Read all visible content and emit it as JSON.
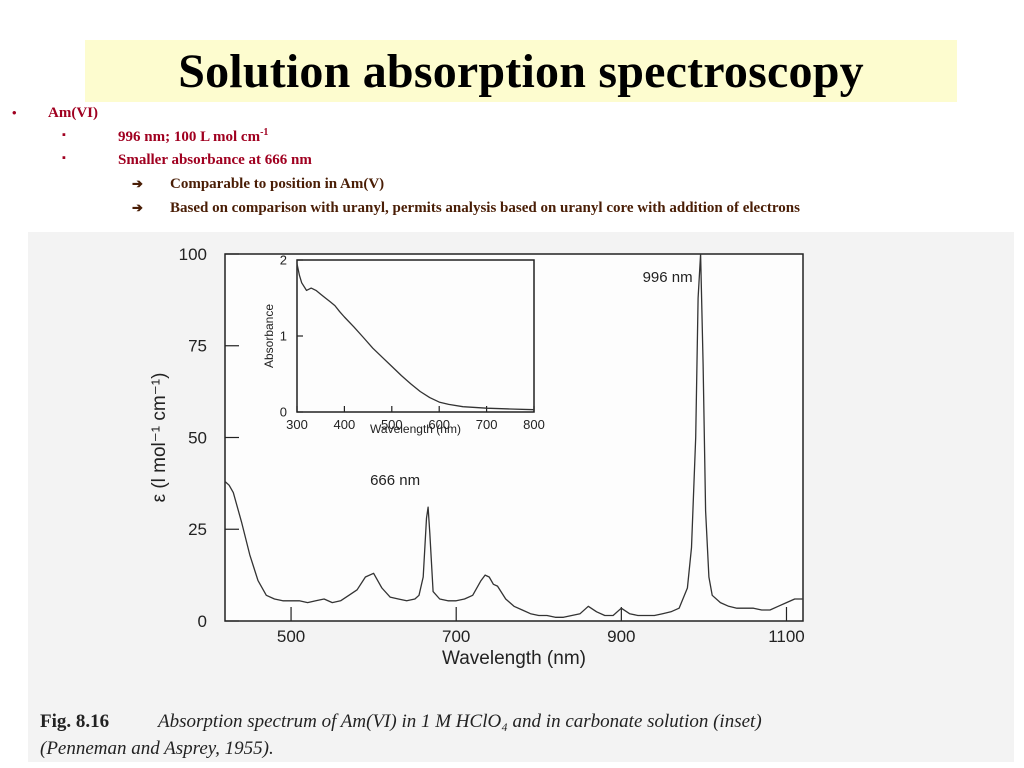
{
  "slide": {
    "title": "Solution absorption spectroscopy",
    "bullets": {
      "level1": {
        "marker": "•",
        "text": "Am(VI)"
      },
      "level2": [
        {
          "marker": "▪",
          "text": "996 nm; 100 L mol cm",
          "sup": "-1"
        },
        {
          "marker": "▪",
          "text": "Smaller absorbance at 666 nm",
          "sup": ""
        }
      ],
      "level3": [
        {
          "marker": "➔",
          "text": "Comparable to position in Am(V)"
        },
        {
          "marker": "➔",
          "text": "Based on comparison with uranyl, permits analysis based on uranyl core with addition of electrons"
        }
      ]
    },
    "colors": {
      "title_bg": "#fdfccf",
      "level1": "#a00020",
      "level2": "#a00020",
      "level3": "#4a1e06"
    }
  },
  "figure": {
    "caption_label": "Fig. 8.16",
    "caption_text_1": "Absorption spectrum of Am(VI) in 1 M HClO₄ and in carbonate solution (inset)",
    "caption_text_2": "(Penneman and Asprey, 1955)."
  },
  "chart_data": [
    {
      "type": "line",
      "title": "",
      "xlabel": "Wavelength (nm)",
      "ylabel": "ε (l mol⁻¹ cm⁻¹)",
      "xlim": [
        420,
        1120
      ],
      "ylim": [
        0,
        100
      ],
      "xticks": [
        500,
        700,
        900,
        1100
      ],
      "xtick_labels": [
        "500",
        "700",
        "900",
        "1100"
      ],
      "yticks": [
        0,
        25,
        50,
        75,
        100
      ],
      "ytick_labels": [
        "0",
        "25",
        "50",
        "75",
        "100"
      ],
      "annotations": [
        {
          "text": "996 nm",
          "x": 996,
          "y": 100
        },
        {
          "text": "666 nm",
          "x": 666,
          "y": 31
        }
      ],
      "series": [
        {
          "x": [
            420,
            425,
            430,
            440,
            450,
            460,
            470,
            480,
            490,
            500,
            510,
            520,
            530,
            540,
            550,
            560,
            570,
            580,
            590,
            600,
            610,
            620,
            630,
            640,
            650,
            655,
            660,
            664,
            666,
            668,
            672,
            680,
            690,
            700,
            710,
            720,
            730,
            735,
            740,
            745,
            750,
            760,
            770,
            780,
            790,
            800,
            810,
            820,
            830,
            840,
            850,
            860,
            870,
            880,
            890,
            900,
            910,
            920,
            930,
            940,
            950,
            960,
            970,
            980,
            985,
            990,
            993,
            996,
            999,
            1002,
            1006,
            1010,
            1020,
            1030,
            1040,
            1050,
            1060,
            1070,
            1080,
            1090,
            1100,
            1110,
            1120
          ],
          "y": [
            38,
            37,
            35,
            27,
            18,
            11,
            7,
            6,
            5.5,
            5.5,
            5.5,
            5,
            5.5,
            6,
            5,
            5.5,
            7,
            8.5,
            12,
            13,
            9,
            6.5,
            6,
            5.5,
            6,
            7,
            12,
            28,
            31,
            24,
            8,
            6,
            5.5,
            5.5,
            6,
            7,
            11,
            12.5,
            12,
            10,
            9.5,
            6,
            4,
            3,
            2,
            1.5,
            1.5,
            1,
            1,
            1.5,
            2,
            4,
            2.5,
            1.5,
            1.5,
            3.5,
            2,
            1.5,
            1.5,
            1.5,
            2,
            2.5,
            3.5,
            9,
            20,
            50,
            88,
            100,
            70,
            30,
            12,
            7,
            5,
            4,
            3.5,
            3.5,
            3.5,
            3,
            3,
            4,
            5,
            6,
            6
          ]
        }
      ]
    },
    {
      "type": "line",
      "title": "",
      "xlabel": "Wavelength (nm)",
      "ylabel": "Absorbance",
      "xlim": [
        300,
        800
      ],
      "ylim": [
        0,
        2
      ],
      "xticks": [
        300,
        400,
        500,
        600,
        700,
        800
      ],
      "xtick_labels": [
        "300",
        "400",
        "500",
        "600",
        "700",
        "800"
      ],
      "yticks": [
        0,
        1,
        2
      ],
      "ytick_labels": [
        "0",
        "1",
        "2"
      ],
      "series": [
        {
          "x": [
            300,
            305,
            310,
            320,
            330,
            340,
            350,
            360,
            370,
            380,
            390,
            400,
            420,
            440,
            460,
            480,
            500,
            520,
            540,
            560,
            580,
            600,
            620,
            650,
            700,
            750,
            800
          ],
          "y": [
            1.95,
            1.8,
            1.7,
            1.6,
            1.63,
            1.6,
            1.55,
            1.5,
            1.45,
            1.4,
            1.32,
            1.25,
            1.12,
            0.98,
            0.84,
            0.72,
            0.6,
            0.48,
            0.37,
            0.27,
            0.19,
            0.13,
            0.1,
            0.07,
            0.05,
            0.04,
            0.03
          ]
        }
      ]
    }
  ]
}
